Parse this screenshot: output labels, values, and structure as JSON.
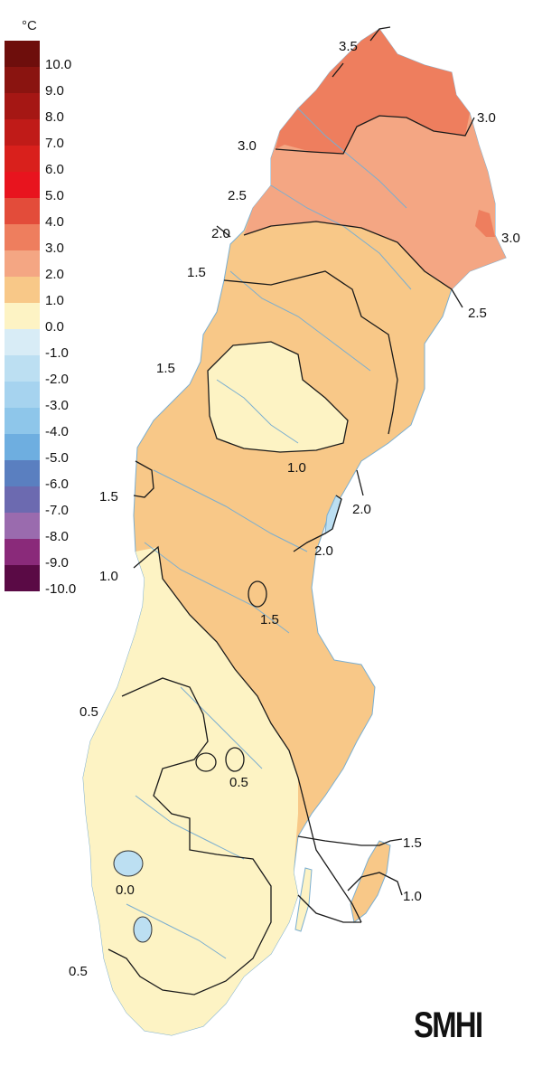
{
  "legend": {
    "unit": "°C",
    "items": [
      {
        "label": "10.0",
        "color": "#6e0e0c"
      },
      {
        "label": "9.0",
        "color": "#8a1410"
      },
      {
        "label": "8.0",
        "color": "#a51714"
      },
      {
        "label": "7.0",
        "color": "#c01b18"
      },
      {
        "label": "6.0",
        "color": "#d9201c"
      },
      {
        "label": "5.0",
        "color": "#e8141e"
      },
      {
        "label": "4.0",
        "color": "#e34c3a"
      },
      {
        "label": "3.0",
        "color": "#ee7e5e"
      },
      {
        "label": "2.0",
        "color": "#f4a683"
      },
      {
        "label": "1.0",
        "color": "#f8c888"
      },
      {
        "label": "0.0",
        "color": "#fdf3c4"
      },
      {
        "label": "-1.0",
        "color": "#d8ecf6"
      },
      {
        "label": "-2.0",
        "color": "#bcdff2"
      },
      {
        "label": "-3.0",
        "color": "#a6d3ef"
      },
      {
        "label": "-4.0",
        "color": "#8ec6ea"
      },
      {
        "label": "-5.0",
        "color": "#6eaee0"
      },
      {
        "label": "-6.0",
        "color": "#5a7fc0"
      },
      {
        "label": "-7.0",
        "color": "#6c6ab0"
      },
      {
        "label": "-8.0",
        "color": "#9a6bae"
      },
      {
        "label": "-9.0",
        "color": "#8a2a7a"
      },
      {
        "label": "-10.0",
        "color": "#5a0a45"
      }
    ]
  },
  "isolines": {
    "north": [
      "3.5",
      "3.0",
      "3.0",
      "3.0",
      "2.5",
      "2.5",
      "2.0"
    ],
    "mid": [
      "1.5",
      "1.5",
      "1.0",
      "2.0",
      "2.0",
      "1.5",
      "1.0"
    ],
    "south": [
      "1.5",
      "0.5",
      "0.5",
      "0.0",
      "0.5",
      "1.5",
      "1.0"
    ]
  },
  "logo": "SMHI"
}
